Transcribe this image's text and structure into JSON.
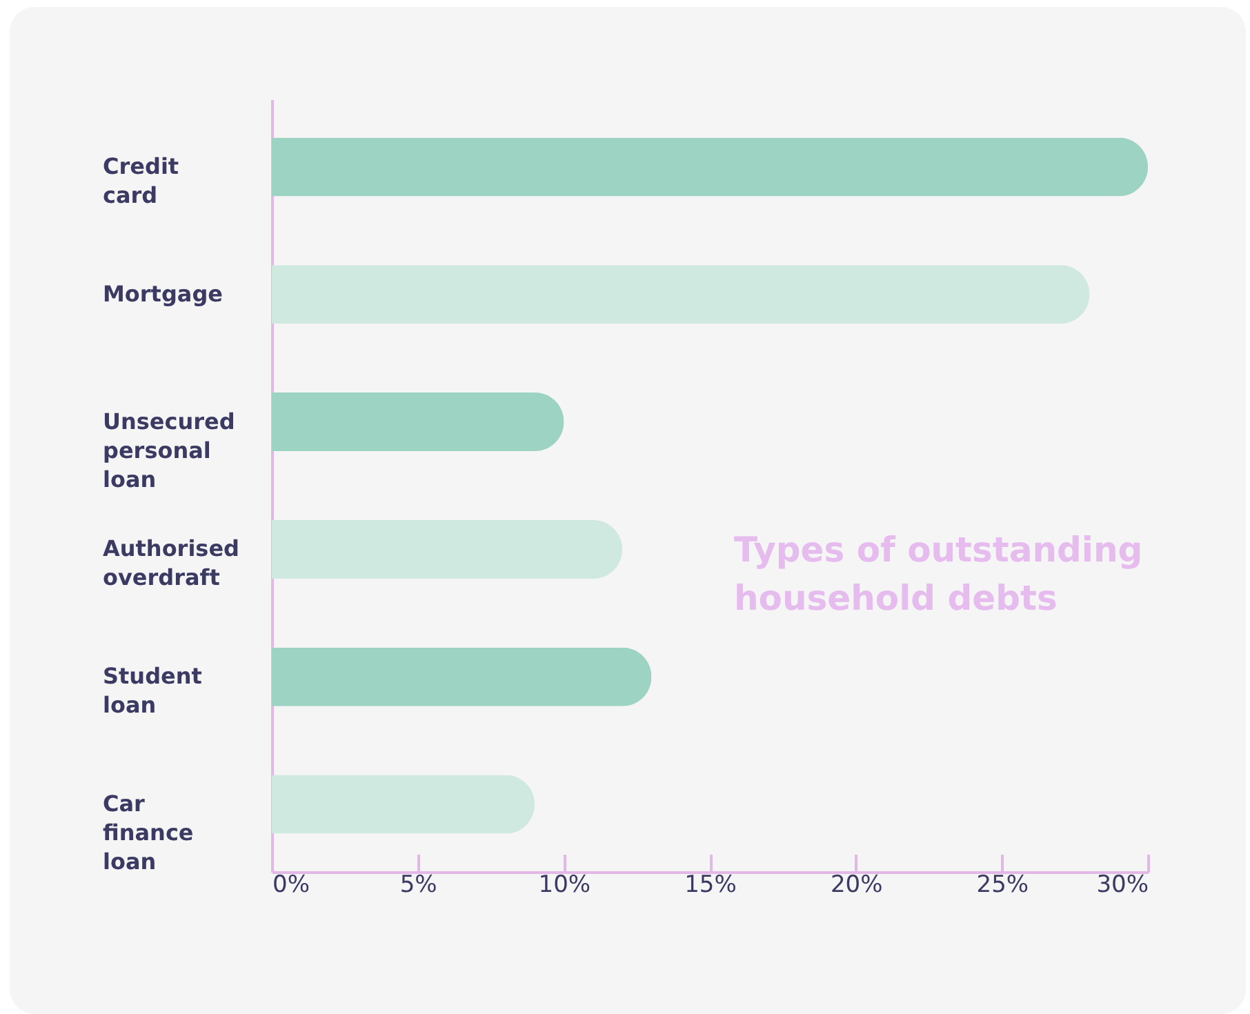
{
  "chart_data": {
    "type": "bar",
    "orientation": "horizontal",
    "title": "Types of outstanding household debts",
    "categories": [
      "Credit card",
      "Mortgage",
      "Unsecured personal loan",
      "Authorised overdraft",
      "Student loan",
      "Car finance loan"
    ],
    "values": [
      30,
      28,
      10,
      12,
      13,
      9
    ],
    "colors": [
      "#9dd3c3",
      "#cfe8e0",
      "#9dd3c3",
      "#cfe8e0",
      "#9dd3c3",
      "#cfe8e0"
    ],
    "xlim": [
      0,
      30
    ],
    "xticks": [
      {
        "value": 0,
        "label": "0%"
      },
      {
        "value": 5,
        "label": "5%"
      },
      {
        "value": 10,
        "label": "10%"
      },
      {
        "value": 15,
        "label": "15%"
      },
      {
        "value": 20,
        "label": "20%"
      },
      {
        "value": 25,
        "label": "25%"
      },
      {
        "value": 30,
        "label": "30%"
      }
    ],
    "grid": false
  }
}
